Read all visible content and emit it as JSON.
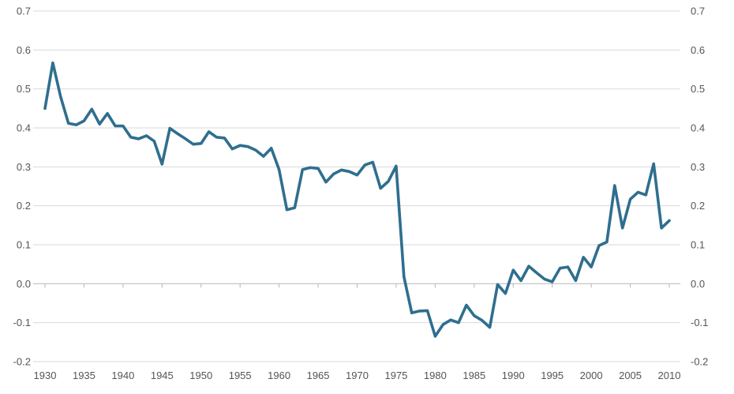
{
  "chart_data": {
    "type": "line",
    "title": "",
    "xlabel": "",
    "ylabel": "",
    "xlim": [
      1930,
      2010
    ],
    "ylim": [
      -0.2,
      0.7
    ],
    "grid": true,
    "legend": "none",
    "x_ticks": [
      "1930",
      "1935",
      "1940",
      "1945",
      "1950",
      "1955",
      "1960",
      "1965",
      "1970",
      "1975",
      "1980",
      "1985",
      "1990",
      "1995",
      "2000",
      "2005",
      "2010"
    ],
    "y_ticks": [
      "0.7",
      "0.6",
      "0.5",
      "0.4",
      "0.3",
      "0.2",
      "0.1",
      "0.0",
      "-0.1",
      "-0.2"
    ],
    "series": [
      {
        "color": "#2f6e8f",
        "x": [
          1930,
          1931,
          1932,
          1933,
          1934,
          1935,
          1936,
          1937,
          1938,
          1939,
          1940,
          1941,
          1942,
          1943,
          1944,
          1945,
          1946,
          1947,
          1948,
          1949,
          1950,
          1951,
          1952,
          1953,
          1954,
          1955,
          1956,
          1957,
          1958,
          1959,
          1960,
          1961,
          1962,
          1963,
          1964,
          1965,
          1966,
          1967,
          1968,
          1969,
          1970,
          1971,
          1972,
          1973,
          1974,
          1975,
          1976,
          1977,
          1978,
          1979,
          1980,
          1981,
          1982,
          1983,
          1984,
          1985,
          1986,
          1987,
          1988,
          1989,
          1990,
          1991,
          1992,
          1993,
          1994,
          1995,
          1996,
          1997,
          1998,
          1999,
          2000,
          2001,
          2002,
          2003,
          2004,
          2005,
          2006,
          2007,
          2008,
          2009,
          2010
        ],
        "values": [
          0.45,
          0.567,
          0.48,
          0.412,
          0.408,
          0.418,
          0.448,
          0.41,
          0.437,
          0.405,
          0.405,
          0.376,
          0.372,
          0.38,
          0.366,
          0.307,
          0.399,
          0.385,
          0.372,
          0.358,
          0.36,
          0.39,
          0.376,
          0.374,
          0.346,
          0.355,
          0.352,
          0.343,
          0.327,
          0.348,
          0.293,
          0.19,
          0.195,
          0.293,
          0.298,
          0.296,
          0.261,
          0.282,
          0.292,
          0.288,
          0.279,
          0.305,
          0.312,
          0.245,
          0.263,
          0.302,
          0.018,
          -0.075,
          -0.07,
          -0.069,
          -0.135,
          -0.105,
          -0.093,
          -0.1,
          -0.055,
          -0.082,
          -0.094,
          -0.112,
          -0.002,
          -0.025,
          0.035,
          0.008,
          0.045,
          0.028,
          0.012,
          0.005,
          0.04,
          0.043,
          0.008,
          0.068,
          0.043,
          0.098,
          0.107,
          0.252,
          0.143,
          0.217,
          0.235,
          0.228,
          0.308,
          0.143,
          0.162
        ]
      }
    ]
  }
}
